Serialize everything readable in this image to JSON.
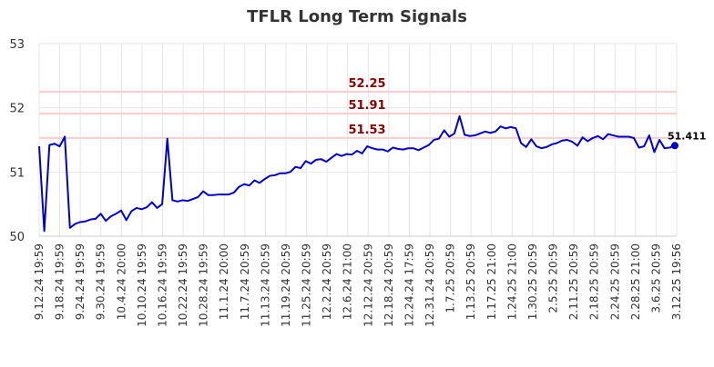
{
  "chart_data": {
    "type": "line",
    "title": "TFLR Long Term Signals",
    "ylim": [
      50,
      53
    ],
    "y_ticks": [
      "50",
      "51",
      "52",
      "53"
    ],
    "x_tick_labels": [
      "9.12.24 19:59",
      "9.18.24 19:59",
      "9.24.24 19:59",
      "9.30.24 19:59",
      "10.4.24 20:00",
      "10.10.24 19:59",
      "10.16.24 19:59",
      "10.22.24 19:59",
      "10.28.24 19:59",
      "11.1.24 20:00",
      "11.7.24 20:59",
      "11.13.24 20:59",
      "11.19.24 20:59",
      "11.25.24 20:59",
      "12.2.24 20:59",
      "12.6.24 21:00",
      "12.12.24 20:59",
      "12.18.24 20:59",
      "12.24.24 17:59",
      "12.31.24 20:59",
      "1.7.25 20:59",
      "1.13.25 20:59",
      "1.17.25 21:00",
      "1.24.25 21:00",
      "1.30.25 20:59",
      "2.5.25 20:59",
      "2.11.25 20:59",
      "2.18.25 20:59",
      "2.24.25 20:59",
      "2.28.25 21:00",
      "3.6.25 20:59",
      "3.12.25 19:56"
    ],
    "signal_lines": [
      {
        "value": 52.25,
        "label": "52.25"
      },
      {
        "value": 51.91,
        "label": "51.91"
      },
      {
        "value": 51.53,
        "label": "51.53"
      }
    ],
    "last_value": {
      "value": 51.411,
      "label": "51.411"
    },
    "series": [
      {
        "color": "#0000cc",
        "values": [
          51.4,
          50.08,
          51.42,
          51.44,
          51.4,
          51.55,
          50.13,
          50.19,
          50.22,
          50.23,
          50.26,
          50.27,
          50.35,
          50.24,
          50.31,
          50.35,
          50.4,
          50.25,
          50.39,
          50.44,
          50.42,
          50.45,
          50.53,
          50.44,
          50.5,
          51.52,
          50.56,
          50.54,
          50.56,
          50.55,
          50.58,
          50.61,
          50.7,
          50.64,
          50.64,
          50.65,
          50.65,
          50.65,
          50.68,
          50.77,
          50.81,
          50.79,
          50.87,
          50.83,
          50.89,
          50.94,
          50.95,
          50.98,
          50.98,
          51.0,
          51.08,
          51.06,
          51.17,
          51.13,
          51.19,
          51.2,
          51.16,
          51.22,
          51.28,
          51.25,
          51.28,
          51.27,
          51.33,
          51.29,
          51.4,
          51.37,
          51.35,
          51.35,
          51.32,
          51.38,
          51.36,
          51.35,
          51.37,
          51.37,
          51.34,
          51.38,
          51.42,
          51.5,
          51.52,
          51.65,
          51.55,
          51.6,
          51.87,
          51.58,
          51.56,
          51.57,
          51.6,
          51.63,
          51.61,
          51.63,
          51.71,
          51.68,
          51.7,
          51.68,
          51.45,
          51.39,
          51.51,
          51.4,
          51.37,
          51.39,
          51.43,
          51.45,
          51.49,
          51.5,
          51.47,
          51.41,
          51.54,
          51.48,
          51.53,
          51.56,
          51.51,
          51.59,
          51.57,
          51.55,
          51.55,
          51.55,
          51.53,
          51.38,
          51.4,
          51.57,
          51.31,
          51.5,
          51.37,
          51.38,
          51.411
        ]
      }
    ]
  }
}
